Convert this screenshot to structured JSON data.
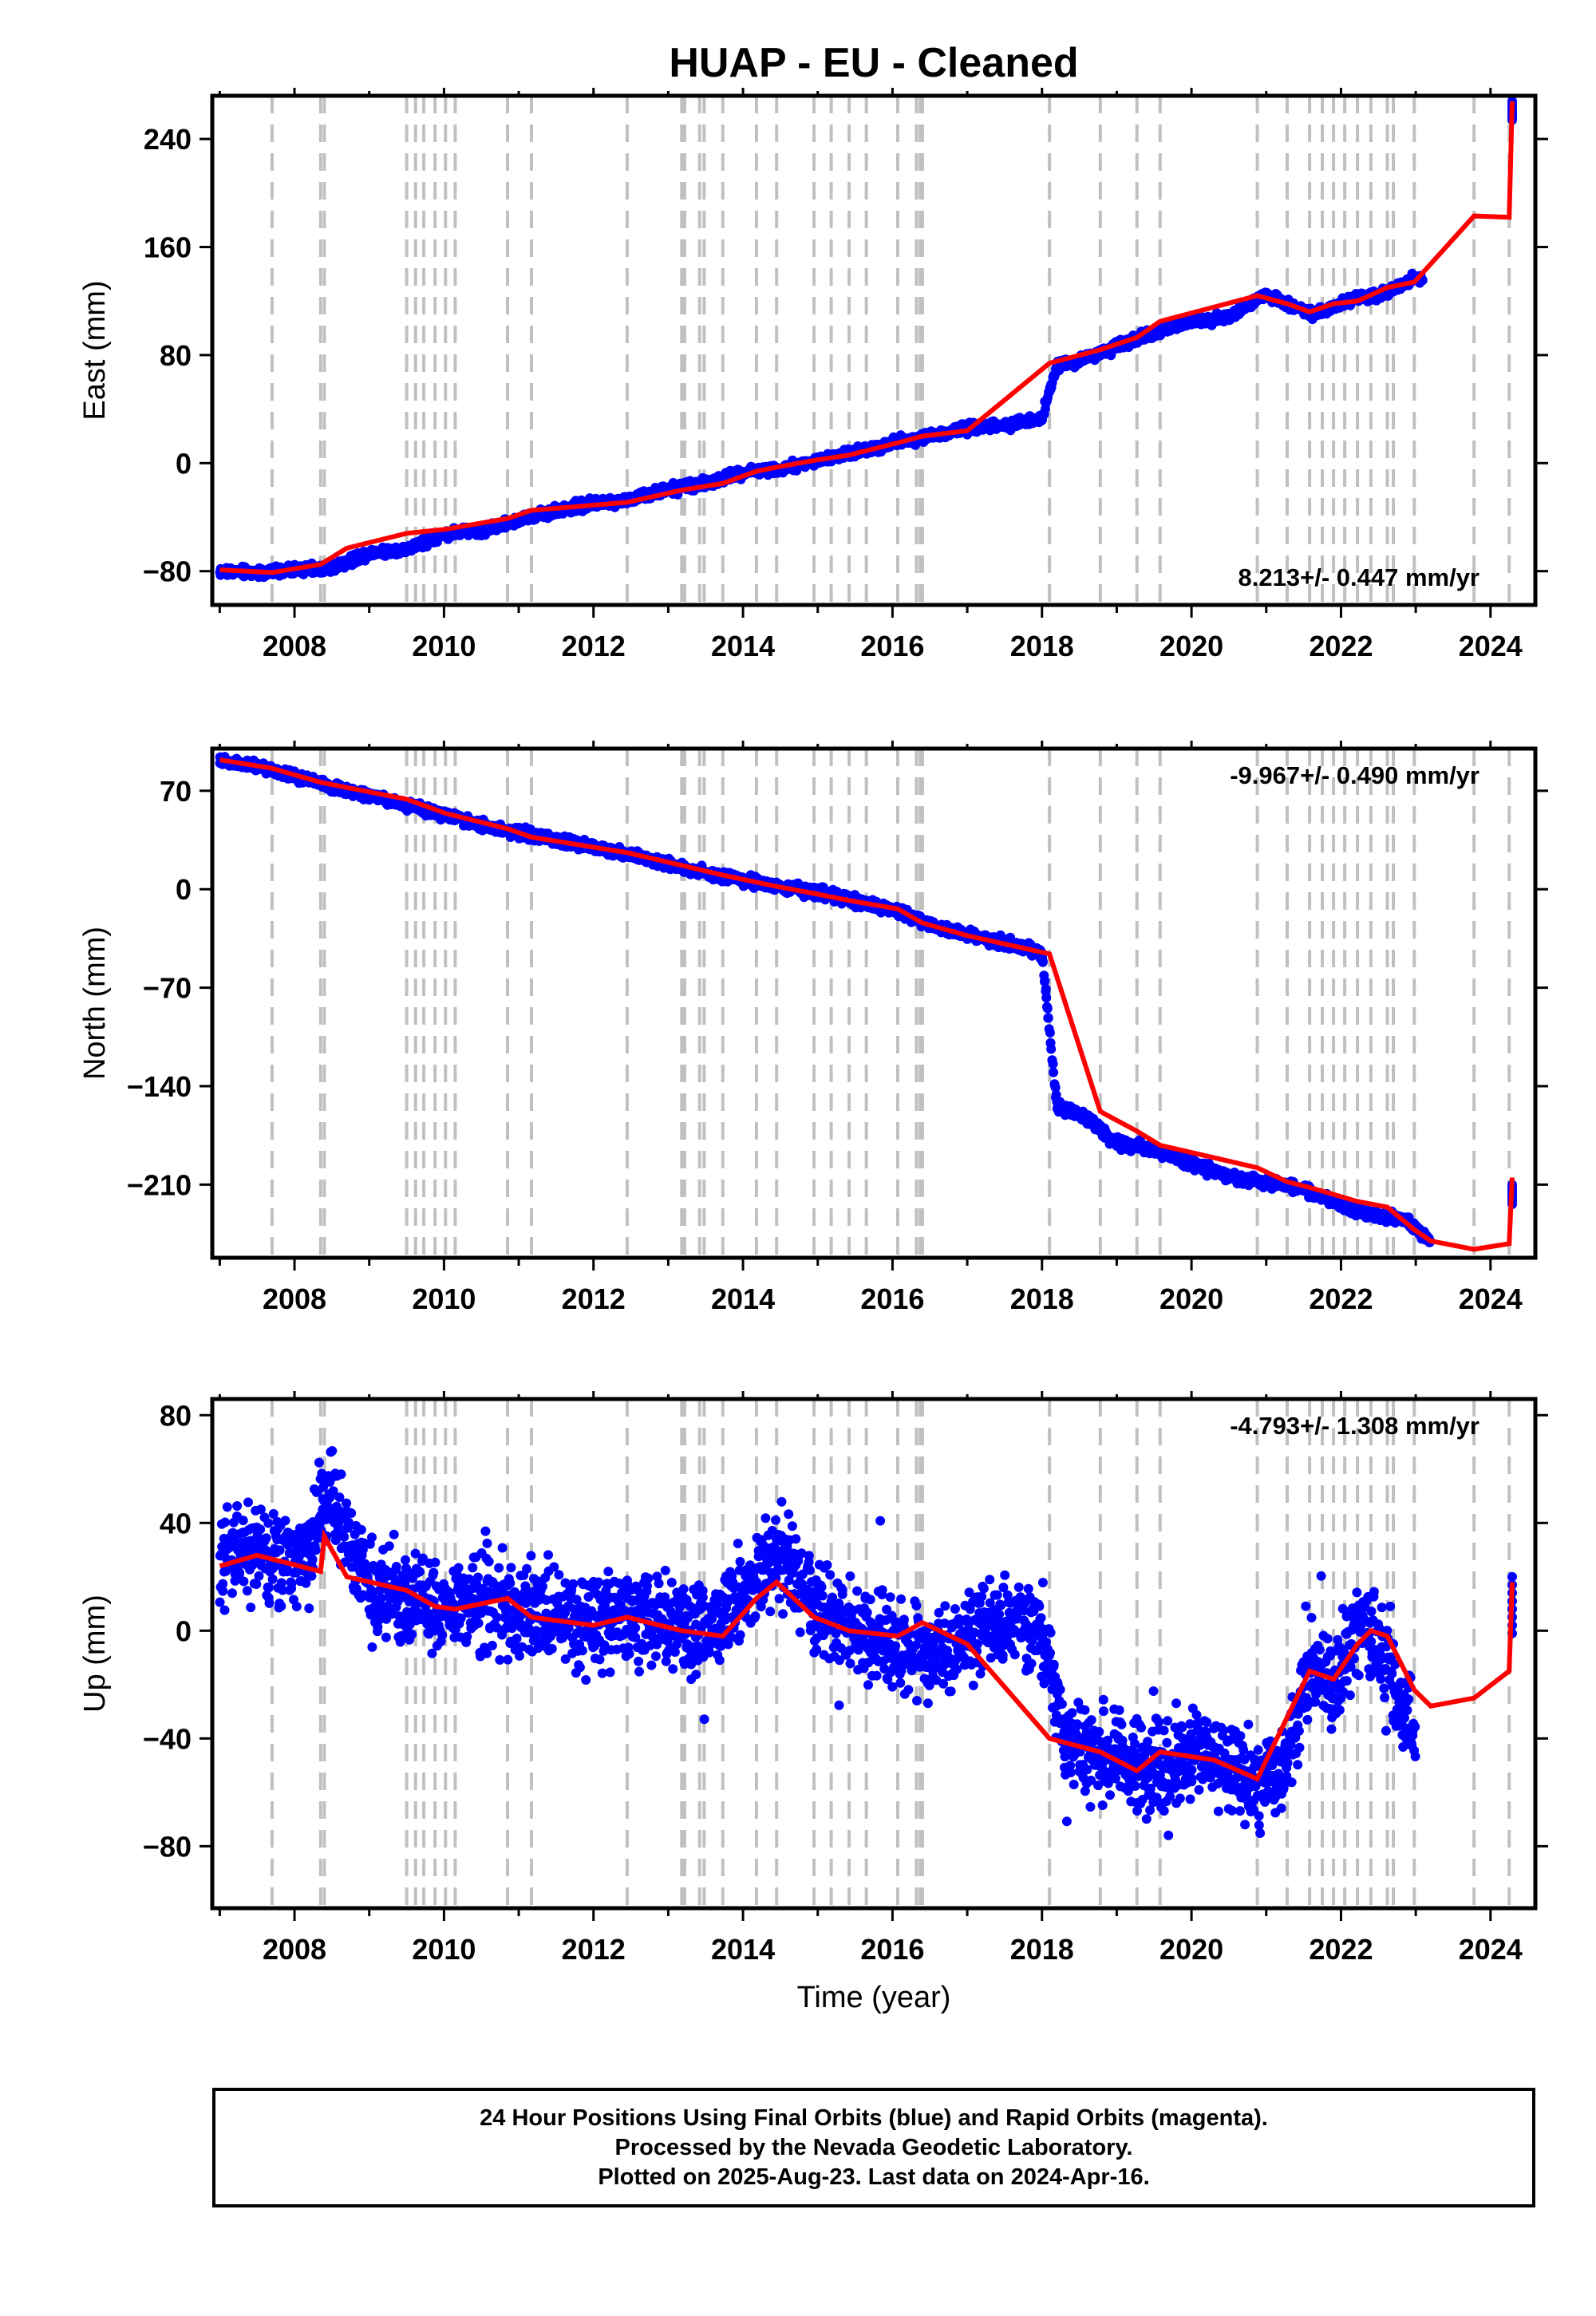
{
  "title": "HUAP  - EU - Cleaned",
  "xlabel": "Time (year)",
  "footer": {
    "line1": "24 Hour Positions Using Final Orbits (blue) and Rapid Orbits (magenta).",
    "line2": "Processed by the Nevada Geodetic Laboratory.",
    "line3": "Plotted on 2025-Aug-23. Last data on 2024-Apr-16."
  },
  "colors": {
    "points": "#0000ff",
    "model": "#ff0000",
    "steps": "#c0c0c0"
  },
  "step_epochs": [
    2007.7,
    2008.35,
    2008.4,
    2009.5,
    2009.62,
    2009.73,
    2009.88,
    2010.02,
    2010.15,
    2010.85,
    2011.17,
    2012.45,
    2013.18,
    2013.22,
    2013.42,
    2013.48,
    2013.73,
    2014.18,
    2014.45,
    2014.95,
    2015.18,
    2015.42,
    2015.65,
    2016.07,
    2016.32,
    2016.37,
    2016.4,
    2018.1,
    2018.78,
    2019.27,
    2019.58,
    2020.88,
    2021.28,
    2021.58,
    2021.75,
    2021.9,
    2022.05,
    2022.22,
    2022.4,
    2022.62,
    2022.7,
    2022.98,
    2023.78,
    2024.25
  ],
  "chart_data": [
    {
      "type": "scatter",
      "title": "HUAP  - EU - Cleaned",
      "ylabel": "East (mm)",
      "xlim": [
        2006.9,
        2024.6
      ],
      "ylim": [
        -105,
        272
      ],
      "xticks": [
        2008,
        2010,
        2012,
        2014,
        2016,
        2018,
        2020,
        2022,
        2024
      ],
      "yticks": [
        -80,
        0,
        80,
        160,
        240
      ],
      "rate_label": "8.213+/- 0.447 mm/yr",
      "rate_position": "bottom-right",
      "series": [
        {
          "name": "Final Orbits (blue)",
          "kind": "points",
          "x": [
            2007.0,
            2007.5,
            2008.0,
            2008.5,
            2009.0,
            2009.5,
            2010.0,
            2010.5,
            2011.0,
            2011.5,
            2012.0,
            2012.5,
            2013.0,
            2013.5,
            2014.0,
            2014.5,
            2015.0,
            2015.5,
            2016.0,
            2016.5,
            2017.0,
            2017.5,
            2018.0,
            2018.2,
            2018.5,
            2019.0,
            2019.5,
            2020.0,
            2020.5,
            2021.0,
            2021.3,
            2021.6,
            2021.9,
            2022.2,
            2022.6,
            2022.9,
            2023.1,
            2024.29
          ],
          "y": [
            -80,
            -81,
            -79,
            -78,
            -66,
            -64,
            -52,
            -50,
            -42,
            -35,
            -30,
            -27,
            -20,
            -15,
            -7,
            -4,
            2,
            8,
            15,
            20,
            26,
            28,
            34,
            72,
            76,
            86,
            97,
            105,
            108,
            125,
            118,
            110,
            115,
            122,
            125,
            135,
            138,
            268
          ]
        },
        {
          "name": "model",
          "kind": "step-line",
          "x": [
            2007.0,
            2007.7,
            2008.35,
            2008.7,
            2009.5,
            2010.02,
            2010.85,
            2011.17,
            2012.45,
            2013.18,
            2013.73,
            2014.18,
            2014.45,
            2014.95,
            2015.42,
            2016.07,
            2016.4,
            2017.0,
            2018.1,
            2018.78,
            2019.27,
            2019.58,
            2020.88,
            2021.28,
            2021.58,
            2021.9,
            2022.22,
            2022.62,
            2022.98,
            2023.78,
            2024.25,
            2024.29
          ],
          "y": [
            -79,
            -81,
            -75,
            -63,
            -52,
            -49,
            -41,
            -35,
            -29,
            -20,
            -15,
            -6,
            -3,
            2,
            6,
            15,
            20,
            24,
            74,
            84,
            93,
            105,
            124,
            118,
            112,
            118,
            120,
            130,
            134,
            183,
            182,
            268
          ]
        }
      ]
    },
    {
      "type": "scatter",
      "ylabel": "North (mm)",
      "xlim": [
        2006.9,
        2024.6
      ],
      "ylim": [
        -262,
        100
      ],
      "xticks": [
        2008,
        2010,
        2012,
        2014,
        2016,
        2018,
        2020,
        2022,
        2024
      ],
      "yticks": [
        -210,
        -140,
        -70,
        0,
        70
      ],
      "rate_label": "-9.967+/- 0.490 mm/yr",
      "rate_position": "top-right",
      "series": [
        {
          "name": "Final Orbits (blue)",
          "kind": "points",
          "x": [
            2007.0,
            2007.5,
            2008.0,
            2008.5,
            2009.0,
            2009.5,
            2010.0,
            2010.5,
            2011.0,
            2011.5,
            2012.0,
            2012.5,
            2013.0,
            2013.5,
            2014.0,
            2014.5,
            2015.0,
            2015.5,
            2016.0,
            2016.5,
            2017.0,
            2017.5,
            2018.0,
            2018.2,
            2018.5,
            2019.0,
            2019.5,
            2020.0,
            2020.5,
            2021.0,
            2021.5,
            2022.0,
            2022.5,
            2022.9,
            2023.2,
            2024.29
          ],
          "y": [
            92,
            87,
            80,
            73,
            67,
            60,
            53,
            46,
            40,
            35,
            30,
            24,
            18,
            12,
            6,
            2,
            -2,
            -8,
            -15,
            -25,
            -33,
            -38,
            -45,
            -155,
            -160,
            -180,
            -185,
            -195,
            -205,
            -208,
            -213,
            -225,
            -232,
            -236,
            -252,
            -210
          ]
        },
        {
          "name": "model",
          "kind": "step-line",
          "x": [
            2007.0,
            2007.7,
            2008.35,
            2009.5,
            2010.02,
            2010.85,
            2011.17,
            2012.45,
            2013.18,
            2013.73,
            2014.45,
            2014.95,
            2015.42,
            2016.07,
            2016.4,
            2017.0,
            2018.1,
            2018.78,
            2019.27,
            2019.58,
            2020.88,
            2021.28,
            2021.58,
            2022.22,
            2022.62,
            2022.98,
            2023.2,
            2023.78,
            2024.25,
            2024.29
          ],
          "y": [
            92,
            86,
            76,
            64,
            54,
            43,
            37,
            26,
            17,
            10,
            2,
            -3,
            -8,
            -14,
            -24,
            -33,
            -46,
            -158,
            -172,
            -182,
            -198,
            -208,
            -212,
            -222,
            -226,
            -242,
            -250,
            -256,
            -252,
            -205
          ]
        }
      ]
    },
    {
      "type": "scatter",
      "ylabel": "Up (mm)",
      "xlim": [
        2006.9,
        2024.6
      ],
      "ylim": [
        -103,
        86
      ],
      "xticks": [
        2008,
        2010,
        2012,
        2014,
        2016,
        2018,
        2020,
        2022,
        2024
      ],
      "yticks": [
        -80,
        -40,
        0,
        40,
        80
      ],
      "rate_label": "-4.793+/- 1.308 mm/yr",
      "rate_position": "top-right",
      "series": [
        {
          "name": "Final Orbits (blue)",
          "kind": "points",
          "x": [
            2007.0,
            2007.5,
            2008.0,
            2008.5,
            2009.0,
            2009.5,
            2010.0,
            2010.5,
            2011.0,
            2011.5,
            2012.0,
            2012.5,
            2013.0,
            2013.5,
            2014.0,
            2014.5,
            2015.0,
            2015.5,
            2016.0,
            2016.5,
            2017.0,
            2017.5,
            2018.0,
            2018.3,
            2018.8,
            2019.3,
            2019.8,
            2020.3,
            2020.8,
            2021.2,
            2021.6,
            2021.9,
            2022.2,
            2022.5,
            2022.8,
            2023.0,
            2024.29
          ],
          "y": [
            28,
            30,
            25,
            50,
            18,
            12,
            8,
            10,
            8,
            5,
            3,
            6,
            2,
            0,
            12,
            30,
            8,
            0,
            -5,
            -10,
            -2,
            5,
            0,
            -40,
            -45,
            -50,
            -48,
            -45,
            -55,
            -52,
            -15,
            -20,
            2,
            -5,
            -30,
            -40,
            20
          ]
        },
        {
          "name": "model",
          "kind": "step-line",
          "x": [
            2007.0,
            2007.5,
            2008.35,
            2008.4,
            2008.7,
            2009.5,
            2009.88,
            2010.15,
            2010.85,
            2011.17,
            2012.0,
            2012.45,
            2013.18,
            2013.73,
            2014.18,
            2014.45,
            2014.95,
            2015.42,
            2016.07,
            2016.4,
            2017.0,
            2018.1,
            2018.78,
            2019.27,
            2019.58,
            2020.3,
            2020.88,
            2021.58,
            2021.9,
            2022.22,
            2022.4,
            2022.62,
            2022.98,
            2023.2,
            2023.78,
            2024.25,
            2024.29
          ],
          "y": [
            24,
            28,
            22,
            35,
            20,
            15,
            9,
            8,
            12,
            5,
            2,
            5,
            0,
            -2,
            12,
            18,
            5,
            0,
            -2,
            3,
            -5,
            -40,
            -45,
            -52,
            -45,
            -48,
            -55,
            -15,
            -18,
            -5,
            0,
            -2,
            -22,
            -28,
            -25,
            -15,
            18
          ]
        }
      ]
    }
  ]
}
